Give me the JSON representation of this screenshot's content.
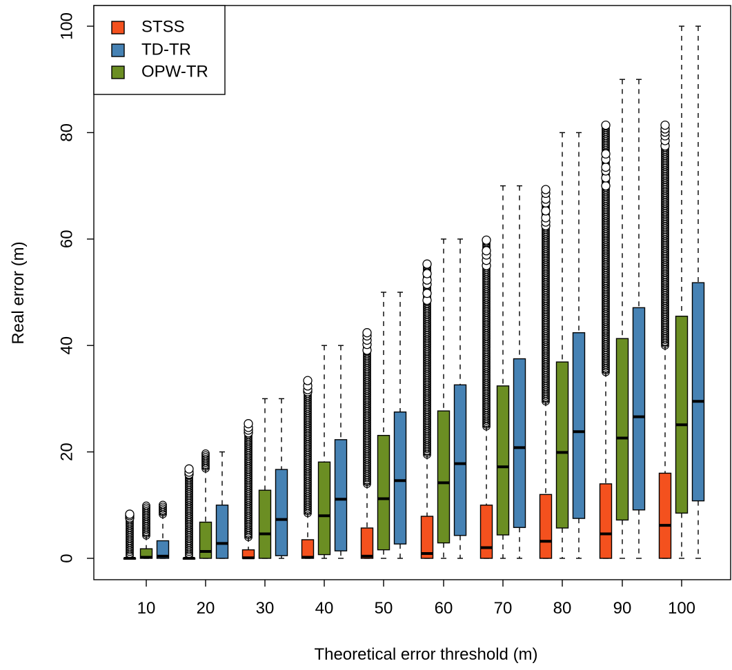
{
  "chart_data": {
    "type": "box",
    "title": "",
    "xlabel": "Theoretical error threshold (m)",
    "ylabel": "Real error (m)",
    "categories": [
      "10",
      "20",
      "30",
      "40",
      "50",
      "60",
      "70",
      "80",
      "90",
      "100"
    ],
    "ylim": [
      0,
      100
    ],
    "yticks": [
      0,
      20,
      40,
      60,
      80,
      100
    ],
    "grid": false,
    "legend_position": "top-left",
    "series": [
      {
        "name": "STSS",
        "color": "#f4511e",
        "boxes": [
          {
            "min": 0,
            "q1": 0,
            "median": 0,
            "q3": 0,
            "max": 0,
            "outliers_from": 0.5,
            "outliers_to": 8.3,
            "outlier_points": [
              7.6,
              8.0,
              8.3
            ]
          },
          {
            "min": 0,
            "q1": 0,
            "median": 0,
            "q3": 0,
            "max": 0,
            "outliers_from": 0.5,
            "outliers_to": 16.8,
            "outlier_points": [
              15.8,
              16.2,
              16.8
            ]
          },
          {
            "min": 0,
            "q1": 0,
            "median": 0.1,
            "q3": 1.6,
            "max": 4.0,
            "outliers_from": 4.0,
            "outliers_to": 25.3,
            "outlier_points": [
              23.6,
              24.1,
              24.6,
              25.3
            ]
          },
          {
            "min": 0,
            "q1": 0,
            "median": 0.2,
            "q3": 3.5,
            "max": 8.5,
            "outliers_from": 8.5,
            "outliers_to": 33.4,
            "outlier_points": [
              31.3,
              31.7,
              32.4,
              33.4
            ]
          },
          {
            "min": 0,
            "q1": 0,
            "median": 0.4,
            "q3": 5.7,
            "max": 14.0,
            "outliers_from": 14.0,
            "outliers_to": 42.4,
            "outlier_points": [
              39.1,
              40.2,
              41.0,
              41.8,
              42.4
            ]
          },
          {
            "min": 0,
            "q1": 0,
            "median": 0.9,
            "q3": 7.9,
            "max": 19.5,
            "outliers_from": 19.5,
            "outliers_to": 55.3,
            "outlier_points": [
              48.5,
              49.8,
              51.5,
              52.3,
              53.5,
              55.3
            ]
          },
          {
            "min": 0,
            "q1": 0,
            "median": 2.0,
            "q3": 10.0,
            "max": 24.8,
            "outliers_from": 24.8,
            "outliers_to": 59.8,
            "outlier_points": [
              55.0,
              56.0,
              57.0,
              57.8,
              59.8
            ]
          },
          {
            "min": 0,
            "q1": 0,
            "median": 3.2,
            "q3": 12.0,
            "max": 29.5,
            "outliers_from": 29.5,
            "outliers_to": 69.3,
            "outlier_points": [
              62.5,
              63.2,
              64.0,
              65.3,
              66.8,
              67.5,
              68.6,
              69.3
            ]
          },
          {
            "min": 0,
            "q1": 0,
            "median": 4.6,
            "q3": 14.0,
            "max": 35.0,
            "outliers_from": 35.0,
            "outliers_to": 81.4,
            "outlier_points": [
              70.0,
              71.5,
              72.8,
              73.5,
              75.0,
              76.0,
              81.4
            ]
          },
          {
            "min": 0,
            "q1": 0,
            "median": 6.2,
            "q3": 16.0,
            "max": 40.0,
            "outliers_from": 40.0,
            "outliers_to": 81.4,
            "outlier_points": [
              77.5,
              78.5,
              79.4,
              80.1,
              80.7,
              81.4
            ]
          }
        ]
      },
      {
        "name": "TD-TR",
        "color": "#4682b4",
        "boxes": [
          {
            "min": 0,
            "q1": 0,
            "median": 0.4,
            "q3": 3.3,
            "max": 8.3,
            "outliers_from": 8.3,
            "outliers_to": 10.2,
            "outlier_points": []
          },
          {
            "min": 0,
            "q1": 0,
            "median": 2.8,
            "q3": 10.0,
            "max": 20.0,
            "outliers_from": null,
            "outliers_to": null,
            "outlier_points": []
          },
          {
            "min": 0,
            "q1": 0.5,
            "median": 7.3,
            "q3": 16.7,
            "max": 30.0,
            "outliers_from": null,
            "outliers_to": null,
            "outlier_points": []
          },
          {
            "min": 0,
            "q1": 1.4,
            "median": 11.1,
            "q3": 22.3,
            "max": 40.0,
            "outliers_from": null,
            "outliers_to": null,
            "outlier_points": []
          },
          {
            "min": 0,
            "q1": 2.7,
            "median": 14.6,
            "q3": 27.5,
            "max": 50.0,
            "outliers_from": null,
            "outliers_to": null,
            "outlier_points": []
          },
          {
            "min": 0,
            "q1": 4.3,
            "median": 17.8,
            "q3": 32.6,
            "max": 60.0,
            "outliers_from": null,
            "outliers_to": null,
            "outlier_points": []
          },
          {
            "min": 0,
            "q1": 5.8,
            "median": 20.8,
            "q3": 37.5,
            "max": 70.0,
            "outliers_from": null,
            "outliers_to": null,
            "outlier_points": []
          },
          {
            "min": 0,
            "q1": 7.5,
            "median": 23.8,
            "q3": 42.4,
            "max": 80.0,
            "outliers_from": null,
            "outliers_to": null,
            "outlier_points": []
          },
          {
            "min": 0,
            "q1": 9.1,
            "median": 26.6,
            "q3": 47.1,
            "max": 90.0,
            "outliers_from": null,
            "outliers_to": null,
            "outlier_points": []
          },
          {
            "min": 0,
            "q1": 10.8,
            "median": 29.5,
            "q3": 51.8,
            "max": 100.0,
            "outliers_from": null,
            "outliers_to": null,
            "outlier_points": []
          }
        ]
      },
      {
        "name": "OPW-TR",
        "color": "#6b8e23",
        "boxes": [
          {
            "min": 0,
            "q1": 0,
            "median": 0.2,
            "q3": 1.8,
            "max": 4.3,
            "outliers_from": 4.3,
            "outliers_to": 10.0,
            "outlier_points": []
          },
          {
            "min": 0,
            "q1": 0,
            "median": 1.3,
            "q3": 6.8,
            "max": 16.9,
            "outliers_from": 16.9,
            "outliers_to": 20.0,
            "outlier_points": []
          },
          {
            "min": 0,
            "q1": 0,
            "median": 4.6,
            "q3": 12.8,
            "max": 30.0,
            "outliers_from": null,
            "outliers_to": null,
            "outlier_points": []
          },
          {
            "min": 0,
            "q1": 0.7,
            "median": 8.0,
            "q3": 18.1,
            "max": 40.0,
            "outliers_from": null,
            "outliers_to": null,
            "outlier_points": []
          },
          {
            "min": 0,
            "q1": 1.6,
            "median": 11.2,
            "q3": 23.1,
            "max": 50.0,
            "outliers_from": null,
            "outliers_to": null,
            "outlier_points": []
          },
          {
            "min": 0,
            "q1": 2.9,
            "median": 14.2,
            "q3": 27.7,
            "max": 60.0,
            "outliers_from": null,
            "outliers_to": null,
            "outlier_points": []
          },
          {
            "min": 0,
            "q1": 4.4,
            "median": 17.2,
            "q3": 32.4,
            "max": 70.0,
            "outliers_from": null,
            "outliers_to": null,
            "outlier_points": []
          },
          {
            "min": 0,
            "q1": 5.7,
            "median": 19.9,
            "q3": 36.9,
            "max": 80.0,
            "outliers_from": null,
            "outliers_to": null,
            "outlier_points": []
          },
          {
            "min": 0,
            "q1": 7.2,
            "median": 22.6,
            "q3": 41.3,
            "max": 90.0,
            "outliers_from": null,
            "outliers_to": null,
            "outlier_points": []
          },
          {
            "min": 0,
            "q1": 8.5,
            "median": 25.1,
            "q3": 45.5,
            "max": 100.0,
            "outliers_from": null,
            "outliers_to": null,
            "outlier_points": []
          }
        ]
      }
    ]
  }
}
